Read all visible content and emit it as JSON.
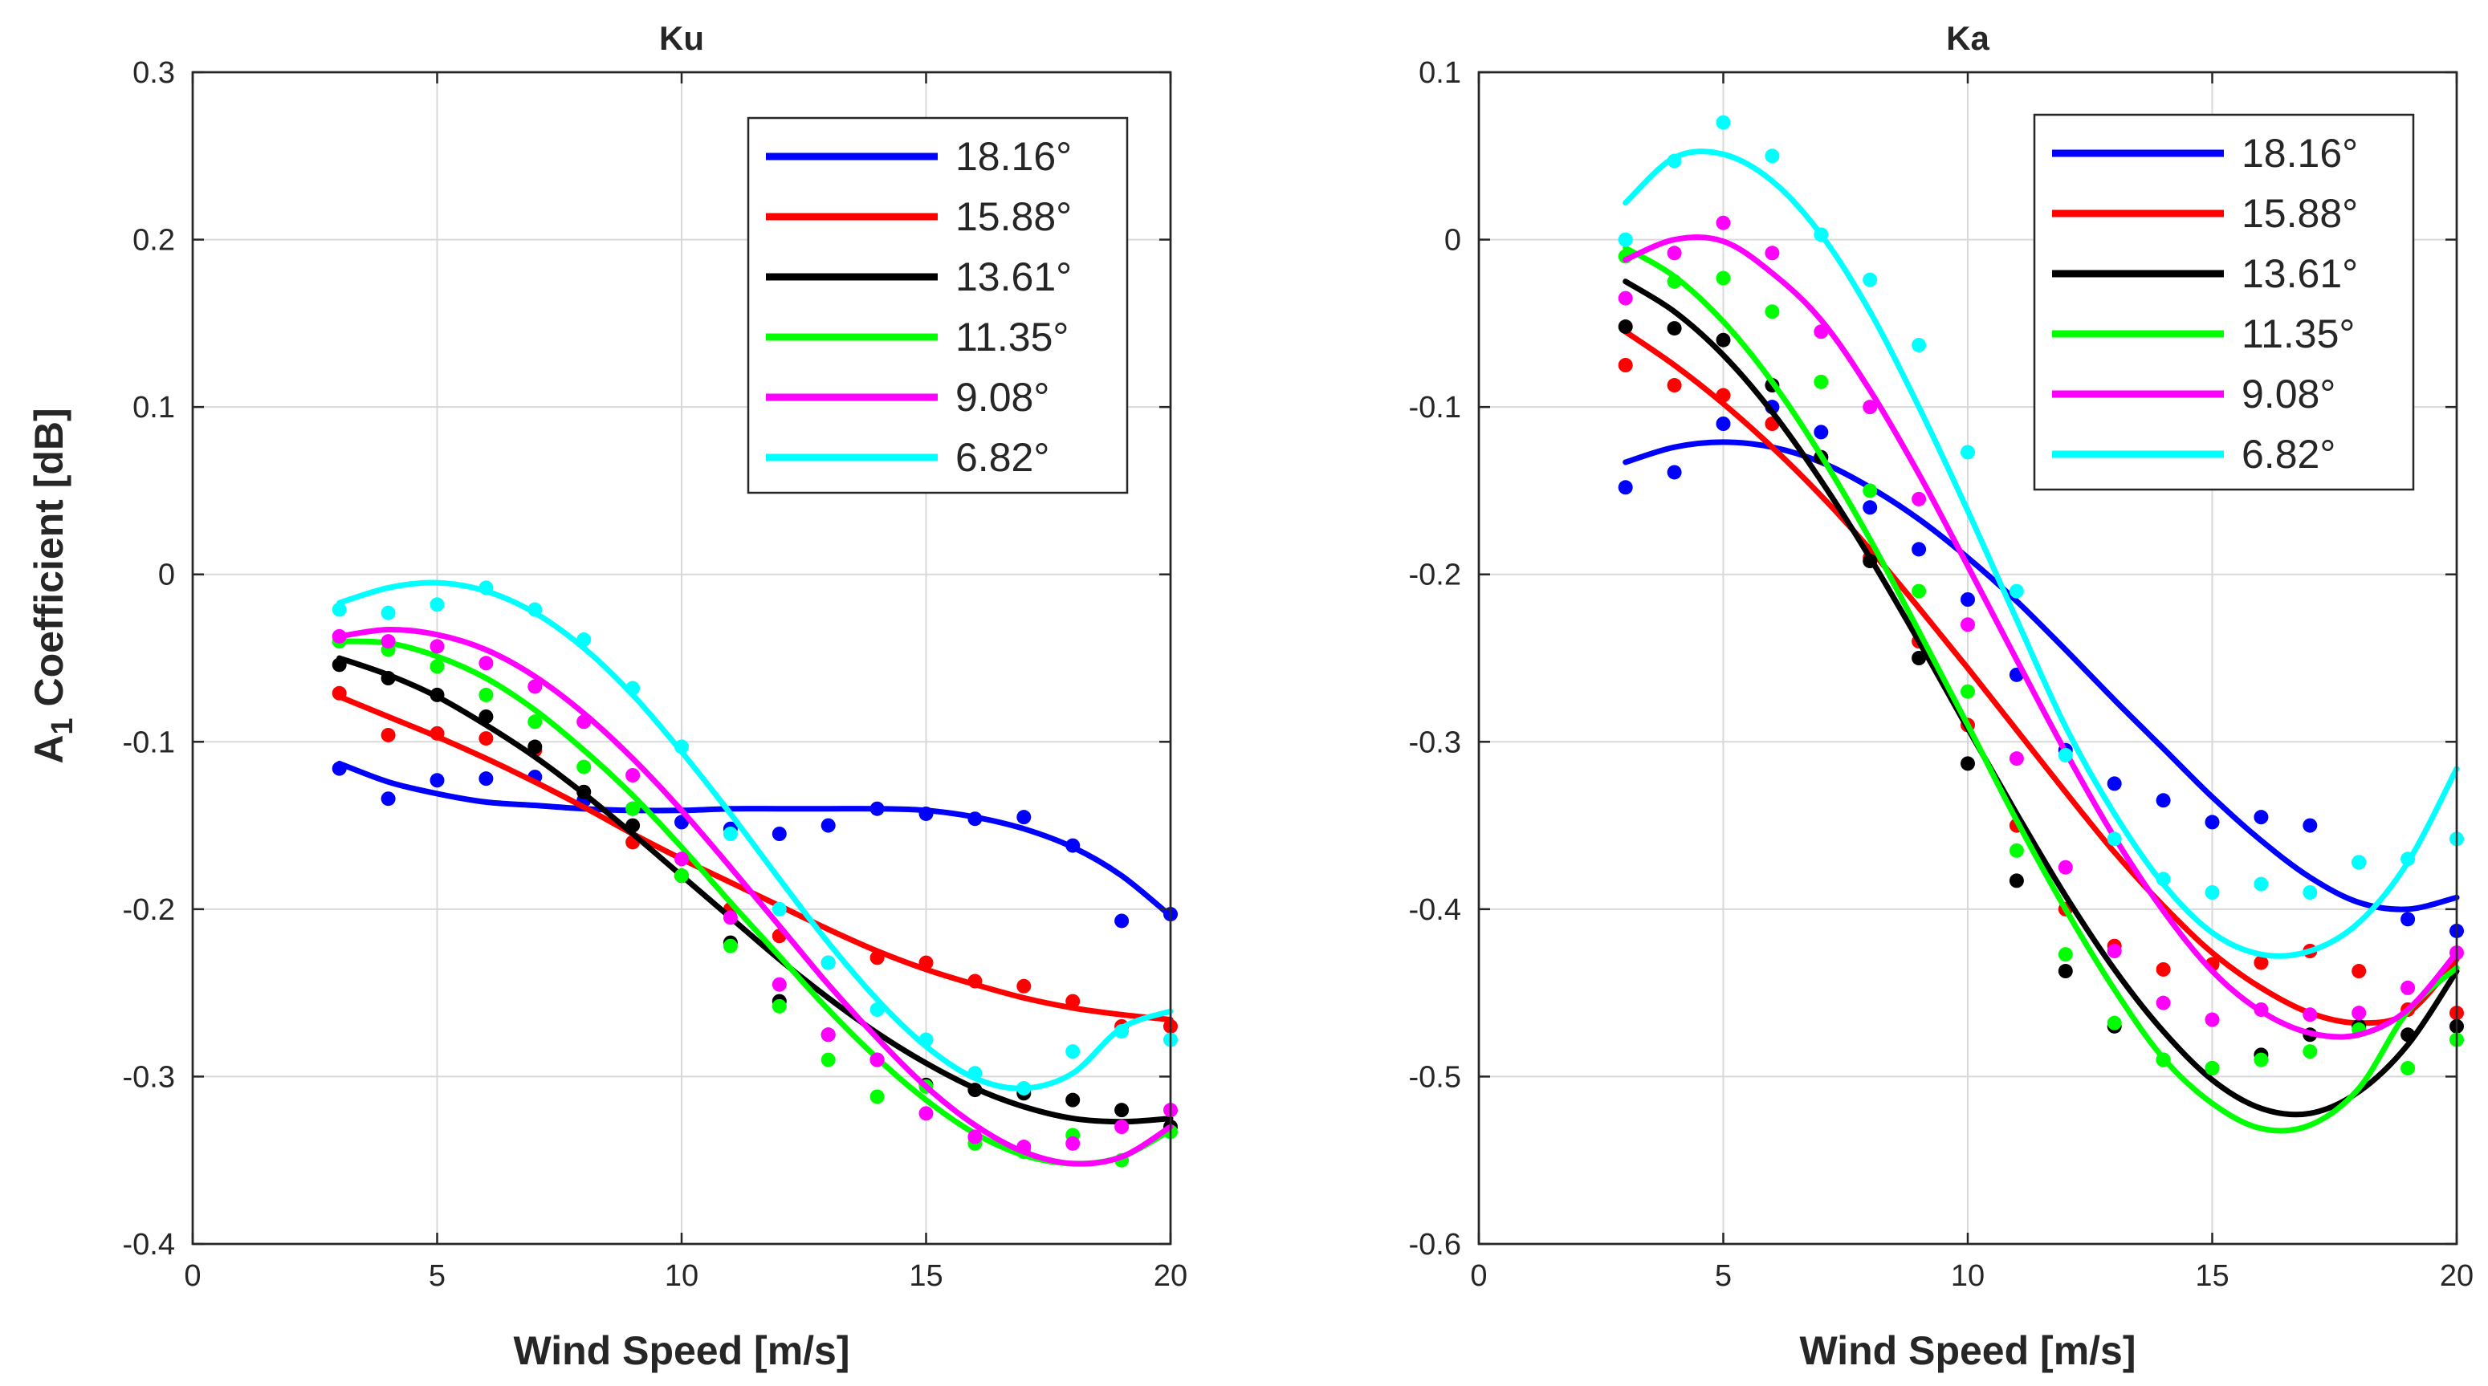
{
  "figure": {
    "ylabel_main": "A",
    "ylabel_sub": "1",
    "ylabel_rest": " Coefficient [dB]"
  },
  "chart_data": [
    {
      "type": "scatter",
      "title": "Ku",
      "xlabel": "Wind Speed [m/s]",
      "ylabel": "A1 Coefficient [dB]",
      "xlim": [
        0,
        20
      ],
      "ylim": [
        -0.4,
        0.3
      ],
      "xticks": [
        0,
        5,
        10,
        15,
        20
      ],
      "xtick_labels": [
        "0",
        "5",
        "10",
        "15",
        "20"
      ],
      "yticks": [
        -0.4,
        -0.3,
        -0.2,
        -0.1,
        0,
        0.1,
        0.2,
        0.3
      ],
      "ytick_labels": [
        "-0.4",
        "-0.3",
        "-0.2",
        "-0.1",
        "0",
        "0.1",
        "0.2",
        "0.3"
      ],
      "grid": true,
      "legend_position": "top-right",
      "x": [
        3,
        4,
        5,
        6,
        7,
        8,
        9,
        10,
        11,
        12,
        13,
        14,
        15,
        16,
        17,
        18,
        19,
        20
      ],
      "series": [
        {
          "name": "18.16°",
          "color": "#0000ff",
          "points": [
            -0.116,
            -0.134,
            -0.123,
            -0.122,
            -0.121,
            -0.135,
            -0.14,
            -0.148,
            -0.152,
            -0.155,
            -0.15,
            -0.14,
            -0.143,
            -0.146,
            -0.145,
            -0.162,
            -0.207,
            -0.203
          ],
          "fit": [
            -0.113,
            -0.124,
            -0.131,
            -0.136,
            -0.138,
            -0.14,
            -0.141,
            -0.141,
            -0.14,
            -0.14,
            -0.14,
            -0.14,
            -0.141,
            -0.145,
            -0.152,
            -0.163,
            -0.18,
            -0.204
          ]
        },
        {
          "name": "15.88°",
          "color": "#ff0000",
          "points": [
            -0.071,
            -0.096,
            -0.095,
            -0.098,
            -0.105,
            -0.13,
            -0.16,
            -0.18,
            -0.2,
            -0.216,
            -0.232,
            -0.229,
            -0.232,
            -0.243,
            -0.246,
            -0.255,
            -0.27,
            -0.27
          ],
          "fit": [
            -0.073,
            -0.085,
            -0.097,
            -0.11,
            -0.124,
            -0.139,
            -0.155,
            -0.17,
            -0.184,
            -0.198,
            -0.212,
            -0.225,
            -0.236,
            -0.245,
            -0.253,
            -0.259,
            -0.263,
            -0.266
          ]
        },
        {
          "name": "13.61°",
          "color": "#000000",
          "points": [
            -0.054,
            -0.062,
            -0.072,
            -0.085,
            -0.103,
            -0.13,
            -0.15,
            -0.18,
            -0.22,
            -0.255,
            -0.275,
            -0.29,
            -0.305,
            -0.308,
            -0.31,
            -0.314,
            -0.32,
            -0.33
          ],
          "fit": [
            -0.05,
            -0.06,
            -0.073,
            -0.09,
            -0.109,
            -0.131,
            -0.155,
            -0.18,
            -0.205,
            -0.23,
            -0.253,
            -0.274,
            -0.292,
            -0.307,
            -0.318,
            -0.325,
            -0.327,
            -0.325
          ]
        },
        {
          "name": "11.35°",
          "color": "#00ff00",
          "points": [
            -0.04,
            -0.045,
            -0.055,
            -0.072,
            -0.088,
            -0.115,
            -0.14,
            -0.18,
            -0.222,
            -0.258,
            -0.29,
            -0.312,
            -0.306,
            -0.34,
            -0.345,
            -0.335,
            -0.35,
            -0.333
          ],
          "fit": [
            -0.04,
            -0.041,
            -0.049,
            -0.062,
            -0.081,
            -0.105,
            -0.132,
            -0.163,
            -0.196,
            -0.228,
            -0.26,
            -0.289,
            -0.314,
            -0.334,
            -0.347,
            -0.352,
            -0.348,
            -0.332
          ]
        },
        {
          "name": "9.08°",
          "color": "#ff00ff",
          "points": [
            -0.037,
            -0.04,
            -0.043,
            -0.053,
            -0.067,
            -0.088,
            -0.12,
            -0.17,
            -0.205,
            -0.245,
            -0.275,
            -0.29,
            -0.322,
            -0.336,
            -0.342,
            -0.34,
            -0.33,
            -0.32
          ],
          "fit": [
            -0.037,
            -0.033,
            -0.036,
            -0.045,
            -0.061,
            -0.083,
            -0.11,
            -0.141,
            -0.175,
            -0.21,
            -0.245,
            -0.277,
            -0.306,
            -0.329,
            -0.345,
            -0.352,
            -0.348,
            -0.33
          ]
        },
        {
          "name": "6.82°",
          "color": "#00ffff",
          "points": [
            -0.021,
            -0.023,
            -0.018,
            -0.008,
            -0.021,
            -0.039,
            -0.068,
            -0.103,
            -0.155,
            -0.2,
            -0.232,
            -0.26,
            -0.278,
            -0.298,
            -0.307,
            -0.285,
            -0.273,
            -0.278
          ],
          "fit": [
            -0.017,
            -0.008,
            -0.005,
            -0.01,
            -0.023,
            -0.044,
            -0.072,
            -0.106,
            -0.143,
            -0.182,
            -0.22,
            -0.254,
            -0.282,
            -0.301,
            -0.307,
            -0.298,
            -0.271,
            -0.261
          ]
        }
      ]
    },
    {
      "type": "scatter",
      "title": "Ka",
      "xlabel": "Wind Speed [m/s]",
      "ylabel": "",
      "xlim": [
        0,
        20
      ],
      "ylim": [
        -0.6,
        0.1
      ],
      "xticks": [
        0,
        5,
        10,
        15,
        20
      ],
      "xtick_labels": [
        "0",
        "5",
        "10",
        "15",
        "20"
      ],
      "yticks": [
        -0.6,
        -0.5,
        -0.4,
        -0.3,
        -0.2,
        -0.1,
        0,
        0.1
      ],
      "ytick_labels": [
        "-0.6",
        "-0.5",
        "-0.4",
        "-0.3",
        "-0.2",
        "-0.1",
        "0",
        "0.1"
      ],
      "grid": true,
      "legend_position": "top-right",
      "x": [
        3,
        4,
        5,
        6,
        7,
        8,
        9,
        10,
        11,
        12,
        13,
        14,
        15,
        16,
        17,
        18,
        19,
        20
      ],
      "series": [
        {
          "name": "18.16°",
          "color": "#0000ff",
          "points": [
            -0.148,
            -0.139,
            -0.11,
            -0.1,
            -0.115,
            -0.16,
            -0.185,
            -0.215,
            -0.26,
            -0.305,
            -0.325,
            -0.335,
            -0.348,
            -0.345,
            -0.35,
            -0.372,
            -0.406,
            -0.413
          ],
          "fit": [
            -0.133,
            -0.124,
            -0.121,
            -0.124,
            -0.133,
            -0.148,
            -0.167,
            -0.19,
            -0.216,
            -0.245,
            -0.275,
            -0.304,
            -0.333,
            -0.359,
            -0.381,
            -0.396,
            -0.4,
            -0.393
          ]
        },
        {
          "name": "15.88°",
          "color": "#ff0000",
          "points": [
            -0.075,
            -0.087,
            -0.093,
            -0.11,
            -0.13,
            -0.19,
            -0.24,
            -0.29,
            -0.35,
            -0.4,
            -0.422,
            -0.436,
            -0.433,
            -0.432,
            -0.425,
            -0.437,
            -0.46,
            -0.462
          ],
          "fit": [
            -0.055,
            -0.075,
            -0.098,
            -0.124,
            -0.153,
            -0.185,
            -0.22,
            -0.256,
            -0.293,
            -0.33,
            -0.366,
            -0.398,
            -0.426,
            -0.447,
            -0.462,
            -0.468,
            -0.462,
            -0.43
          ]
        },
        {
          "name": "13.61°",
          "color": "#000000",
          "points": [
            -0.052,
            -0.053,
            -0.06,
            -0.087,
            -0.13,
            -0.192,
            -0.25,
            -0.313,
            -0.383,
            -0.437,
            -0.47,
            -0.49,
            -0.495,
            -0.487,
            -0.475,
            -0.47,
            -0.475,
            -0.47
          ],
          "fit": [
            -0.025,
            -0.043,
            -0.069,
            -0.103,
            -0.144,
            -0.19,
            -0.24,
            -0.292,
            -0.343,
            -0.392,
            -0.436,
            -0.473,
            -0.502,
            -0.519,
            -0.522,
            -0.509,
            -0.481,
            -0.437
          ]
        },
        {
          "name": "11.35°",
          "color": "#00ff00",
          "points": [
            -0.01,
            -0.025,
            -0.023,
            -0.043,
            -0.085,
            -0.15,
            -0.21,
            -0.27,
            -0.365,
            -0.427,
            -0.468,
            -0.49,
            -0.495,
            -0.49,
            -0.485,
            -0.472,
            -0.495,
            -0.478
          ],
          "fit": [
            -0.005,
            -0.022,
            -0.049,
            -0.085,
            -0.129,
            -0.179,
            -0.234,
            -0.29,
            -0.347,
            -0.4,
            -0.448,
            -0.489,
            -0.516,
            -0.531,
            -0.529,
            -0.507,
            -0.461,
            -0.435
          ]
        },
        {
          "name": "9.08°",
          "color": "#ff00ff",
          "points": [
            -0.035,
            -0.008,
            0.01,
            -0.008,
            -0.055,
            -0.1,
            -0.155,
            -0.23,
            -0.31,
            -0.375,
            -0.425,
            -0.456,
            -0.466,
            -0.46,
            -0.463,
            -0.462,
            -0.447,
            -0.426
          ],
          "fit": [
            -0.012,
            0.0,
            -0.001,
            -0.02,
            -0.048,
            -0.09,
            -0.14,
            -0.195,
            -0.251,
            -0.306,
            -0.357,
            -0.401,
            -0.437,
            -0.461,
            -0.474,
            -0.475,
            -0.46,
            -0.426
          ]
        },
        {
          "name": "6.82°",
          "color": "#00ffff",
          "points": [
            0.0,
            0.047,
            0.07,
            0.05,
            0.003,
            -0.024,
            -0.063,
            -0.127,
            -0.21,
            -0.308,
            -0.358,
            -0.382,
            -0.39,
            -0.385,
            -0.39,
            -0.372,
            -0.37,
            -0.358
          ],
          "fit": [
            0.022,
            0.049,
            0.051,
            0.035,
            0.003,
            -0.043,
            -0.1,
            -0.162,
            -0.227,
            -0.291,
            -0.343,
            -0.385,
            -0.414,
            -0.427,
            -0.425,
            -0.408,
            -0.372,
            -0.316
          ]
        }
      ]
    }
  ]
}
